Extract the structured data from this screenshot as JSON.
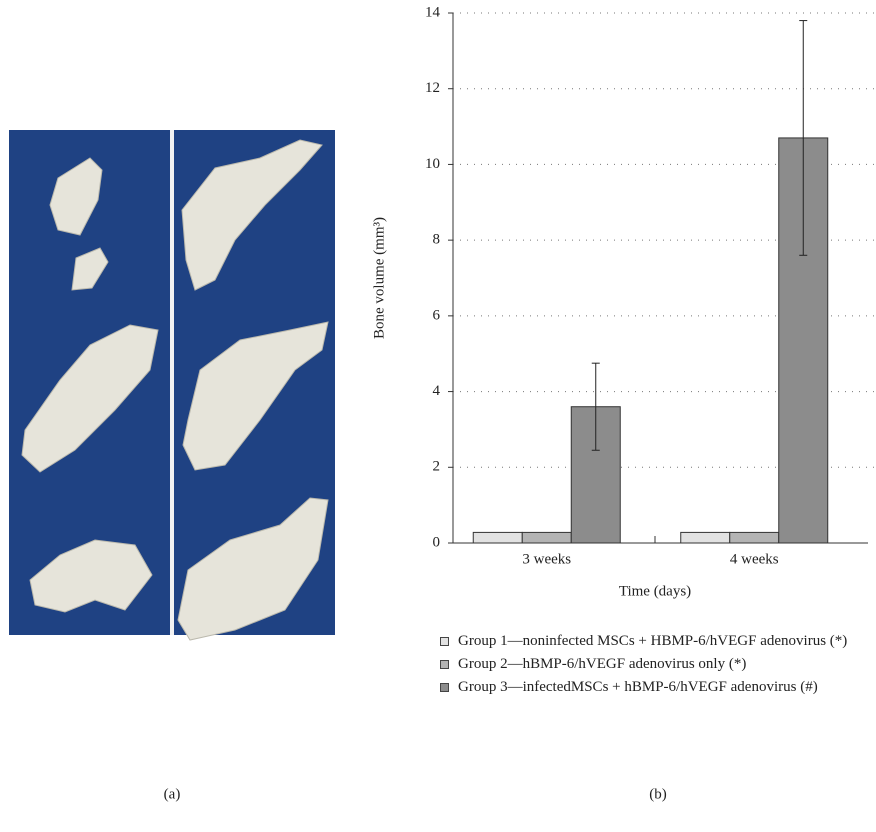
{
  "chart_data": {
    "type": "bar",
    "categories": [
      "3 weeks",
      "4 weeks"
    ],
    "series": [
      {
        "name": "Group 1—noninfected MSCs + HBMP-6/hVEGF adenovirus (*)",
        "color": "#e2e2e2",
        "values": [
          0.28,
          0.28
        ]
      },
      {
        "name": "Group 2—hBMP-6/hVEGF adenovirus only (*)",
        "color": "#b4b4b4",
        "values": [
          0.28,
          0.28
        ]
      },
      {
        "name": "Group 3—infectedMSCs + hBMP-6/hVEGF adenovirus (#)",
        "color": "#8c8c8c",
        "values": [
          3.6,
          10.7
        ],
        "errors": [
          1.15,
          3.1
        ]
      }
    ],
    "ylabel": "Bone volume (mm³)",
    "xlabel": "Time (days)",
    "ylim": [
      0,
      14
    ],
    "yticks": [
      0,
      2,
      4,
      6,
      8,
      10,
      12,
      14
    ],
    "grid": true
  },
  "panel_labels": [
    "(a)",
    "(b)"
  ]
}
